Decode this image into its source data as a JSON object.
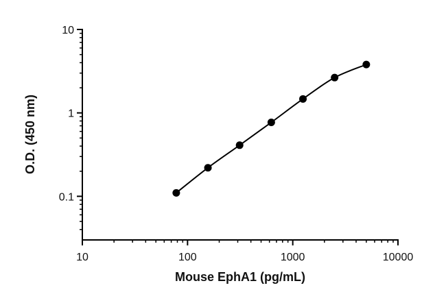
{
  "chart_data": {
    "type": "scatter",
    "x_label": "Mouse EphA1 (pg/mL)",
    "y_label": "O.D. (450 nm)",
    "x": [
      78.1,
      156.25,
      312.5,
      625,
      1250,
      2500,
      5000
    ],
    "series": [
      {
        "color": "#000000",
        "values": [
          0.11,
          0.22,
          0.41,
          0.77,
          1.47,
          2.65,
          3.8
        ]
      }
    ],
    "xlim": [
      10,
      10000
    ],
    "xticks": [
      10,
      100,
      1000,
      10000
    ],
    "ylim": [
      0.03,
      10
    ],
    "yticks": [
      0.1,
      1,
      10
    ],
    "xscale": "log",
    "yscale": "log",
    "fit_line": true
  }
}
